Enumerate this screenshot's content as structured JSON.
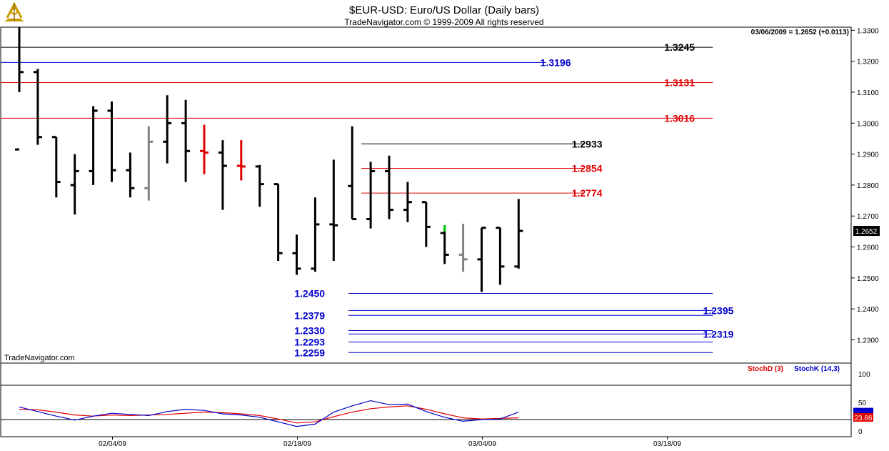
{
  "header": {
    "title": "$EUR-USD:  Euro/US Dollar  (Daily bars)",
    "subtitle": "TradeNavigator.com © 1999-2009 All rights reserved"
  },
  "quote": {
    "text": "03/06/2009 = 1.2652 (+0.0113)",
    "last": "1.2652"
  },
  "watermark": "TradeNavigator.com",
  "chart_data": [
    {
      "type": "ohlc",
      "price_axis": {
        "ylim": [
          1.2225,
          1.331
        ],
        "ticks": [
          "1.3300",
          "1.3200",
          "1.3100",
          "1.3000",
          "1.2900",
          "1.2800",
          "1.2700",
          "1.2600",
          "1.2500",
          "1.2400",
          "1.2300"
        ]
      },
      "date_labels": [
        {
          "label": "02/04/09",
          "index": 5
        },
        {
          "label": "02/18/09",
          "index": 15
        },
        {
          "label": "03/04/09",
          "index": 25
        },
        {
          "label": "03/18/09",
          "index": 35
        }
      ],
      "bars": [
        {
          "o": 1.2915,
          "h": 1.331,
          "l": 1.31,
          "c": 1.3165,
          "color": "#000000"
        },
        {
          "o": 1.3165,
          "h": 1.3175,
          "l": 1.293,
          "c": 1.2955,
          "color": "#000000"
        },
        {
          "o": 1.2955,
          "h": 1.2955,
          "l": 1.276,
          "c": 1.281,
          "color": "#000000"
        },
        {
          "o": 1.28,
          "h": 1.29,
          "l": 1.2705,
          "c": 1.2845,
          "color": "#000000"
        },
        {
          "o": 1.2845,
          "h": 1.3055,
          "l": 1.28,
          "c": 1.304,
          "color": "#000000"
        },
        {
          "o": 1.304,
          "h": 1.307,
          "l": 1.281,
          "c": 1.2848,
          "color": "#000000"
        },
        {
          "o": 1.2848,
          "h": 1.2905,
          "l": 1.276,
          "c": 1.279,
          "color": "#000000"
        },
        {
          "o": 1.279,
          "h": 1.299,
          "l": 1.275,
          "c": 1.294,
          "color": "#808080"
        },
        {
          "o": 1.294,
          "h": 1.309,
          "l": 1.287,
          "c": 1.3,
          "color": "#000000"
        },
        {
          "o": 1.3,
          "h": 1.3075,
          "l": 1.281,
          "c": 1.291,
          "color": "#000000"
        },
        {
          "o": 1.291,
          "h": 1.2995,
          "l": 1.2835,
          "c": 1.2905,
          "color": "#e00000"
        },
        {
          "o": 1.2905,
          "h": 1.2945,
          "l": 1.272,
          "c": 1.2862,
          "color": "#000000"
        },
        {
          "o": 1.2862,
          "h": 1.2945,
          "l": 1.2815,
          "c": 1.286,
          "color": "#e00000"
        },
        {
          "o": 1.286,
          "h": 1.2865,
          "l": 1.273,
          "c": 1.2803,
          "color": "#000000"
        },
        {
          "o": 1.2803,
          "h": 1.2803,
          "l": 1.2555,
          "c": 1.258,
          "color": "#000000"
        },
        {
          "o": 1.258,
          "h": 1.264,
          "l": 1.251,
          "c": 1.253,
          "color": "#000000"
        },
        {
          "o": 1.253,
          "h": 1.276,
          "l": 1.252,
          "c": 1.2673,
          "color": "#000000"
        },
        {
          "o": 1.2673,
          "h": 1.2882,
          "l": 1.2555,
          "c": 1.267,
          "color": "#000000"
        },
        {
          "o": 1.2797,
          "h": 1.299,
          "l": 1.269,
          "c": 1.269,
          "color": "#000000"
        },
        {
          "o": 1.269,
          "h": 1.2875,
          "l": 1.266,
          "c": 1.2845,
          "color": "#000000"
        },
        {
          "o": 1.2845,
          "h": 1.2895,
          "l": 1.269,
          "c": 1.272,
          "color": "#000000"
        },
        {
          "o": 1.272,
          "h": 1.281,
          "l": 1.268,
          "c": 1.2745,
          "color": "#000000"
        },
        {
          "o": 1.2745,
          "h": 1.2745,
          "l": 1.26,
          "c": 1.2665,
          "color": "#000000"
        },
        {
          "o": 1.2645,
          "h": 1.267,
          "l": 1.2545,
          "c": 1.2575,
          "color": "#000000"
        },
        {
          "o": 1.2575,
          "h": 1.2675,
          "l": 1.252,
          "c": 1.256,
          "color": "#808080"
        },
        {
          "o": 1.256,
          "h": 1.2662,
          "l": 1.2455,
          "c": 1.2662,
          "color": "#000000"
        },
        {
          "o": 1.2662,
          "h": 1.2662,
          "l": 1.2478,
          "c": 1.2537,
          "color": "#000000"
        },
        {
          "o": 1.2537,
          "h": 1.2755,
          "l": 1.253,
          "c": 1.2652,
          "color": "#000000"
        }
      ],
      "levels": [
        {
          "label": "1.3245",
          "value": 1.3245,
          "color": "#000000",
          "from": 0,
          "to": 37.5,
          "label_at": 35.7
        },
        {
          "label": "1.3196",
          "value": 1.3196,
          "color": "#0000cc",
          "from": 0,
          "to": 28.5,
          "label_at": 29.0
        },
        {
          "label": "1.3131",
          "value": 1.3131,
          "color": "#e00000",
          "from": 0,
          "to": 37.5,
          "label_at": 35.7
        },
        {
          "label": "1.3016",
          "value": 1.3016,
          "color": "#e00000",
          "from": 0,
          "to": 37.5,
          "label_at": 35.7
        },
        {
          "label": "1.2933",
          "value": 1.2933,
          "color": "#000000",
          "from": 18.5,
          "to": 30.5,
          "label_at": 30.7
        },
        {
          "label": "1.2854",
          "value": 1.2854,
          "color": "#e00000",
          "from": 18.5,
          "to": 30.5,
          "label_at": 30.7
        },
        {
          "label": "1.2774",
          "value": 1.2774,
          "color": "#e00000",
          "from": 18.5,
          "to": 30.5,
          "label_at": 30.7
        },
        {
          "label": "1.2450",
          "value": 1.245,
          "color": "#0000cc",
          "from": 17.8,
          "to": 37.5,
          "label_at": 15.7
        },
        {
          "label": "1.2379",
          "value": 1.2379,
          "color": "#0000cc",
          "from": 17.8,
          "to": 37.5,
          "label_at": 15.7
        },
        {
          "label": "1.2395",
          "value": 1.2395,
          "color": "#0000cc",
          "from": 17.8,
          "to": 37.5,
          "label_at": 37.8
        },
        {
          "label": "1.2330",
          "value": 1.233,
          "color": "#0000cc",
          "from": 17.8,
          "to": 37.5,
          "label_at": 15.7
        },
        {
          "label": "1.2319",
          "value": 1.2319,
          "color": "#0000cc",
          "from": 17.8,
          "to": 37.5,
          "label_at": 37.8
        },
        {
          "label": "1.2293",
          "value": 1.2293,
          "color": "#0000cc",
          "from": 17.8,
          "to": 37.5,
          "label_at": 15.7
        },
        {
          "label": "1.2259",
          "value": 1.2259,
          "color": "#0000cc",
          "from": 17.8,
          "to": 37.5,
          "label_at": 15.7
        }
      ]
    },
    {
      "type": "line",
      "legend": [
        {
          "name": "StochD (3)",
          "color": "#e00000"
        },
        {
          "name": "StochK (14,3)",
          "color": "#0000cc"
        }
      ],
      "ylim": [
        0,
        100
      ],
      "ticks": [
        "100",
        "50",
        "0"
      ],
      "reference_lines": [
        80,
        20
      ],
      "series": [
        {
          "name": "StochD (3)",
          "color": "#e00000",
          "values": [
            38,
            37,
            33,
            28,
            26,
            28,
            27,
            28,
            29,
            31,
            33,
            32,
            30,
            27,
            21,
            14,
            16,
            25,
            33,
            39,
            42,
            44,
            38,
            30,
            23,
            21,
            22,
            23
          ]
        },
        {
          "name": "StochK (14,3)",
          "color": "#0000cc",
          "values": [
            42,
            34,
            26,
            19,
            26,
            31,
            29,
            27,
            34,
            38,
            36,
            30,
            28,
            24,
            16,
            8,
            12,
            33,
            44,
            53,
            46,
            47,
            34,
            24,
            17,
            20,
            21,
            33
          ]
        }
      ],
      "last_d": "23.86"
    }
  ]
}
